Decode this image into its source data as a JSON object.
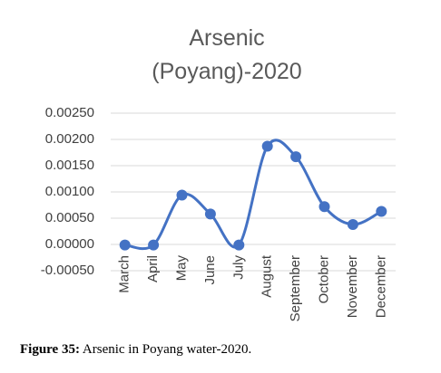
{
  "chart_data": {
    "type": "line",
    "title": "Arsenic (Poyang)-2020",
    "categories": [
      "March",
      "April",
      "May",
      "June",
      "July",
      "August",
      "September",
      "October",
      "November",
      "December"
    ],
    "series": [
      {
        "name": "Arsenic",
        "color": "#4472c4",
        "values": [
          -1e-05,
          -1e-05,
          0.00094,
          0.00058,
          -1e-05,
          0.00187,
          0.00167,
          0.00072,
          0.00038,
          0.00063
        ]
      }
    ],
    "ylim": [
      -0.0005,
      0.0025
    ],
    "yticks": [
      {
        "value": -0.0005,
        "label": "-0.00050"
      },
      {
        "value": 0,
        "label": "0.00000"
      },
      {
        "value": 0.0005,
        "label": "0.00050"
      },
      {
        "value": 0.001,
        "label": "0.00100"
      },
      {
        "value": 0.0015,
        "label": "0.00150"
      },
      {
        "value": 0.002,
        "label": "0.00200"
      },
      {
        "value": 0.0025,
        "label": "0.00250"
      }
    ],
    "grid": true,
    "smooth": true
  },
  "caption": {
    "label": "Figure 35:",
    "text": "Arsenic in Poyang water-2020."
  }
}
